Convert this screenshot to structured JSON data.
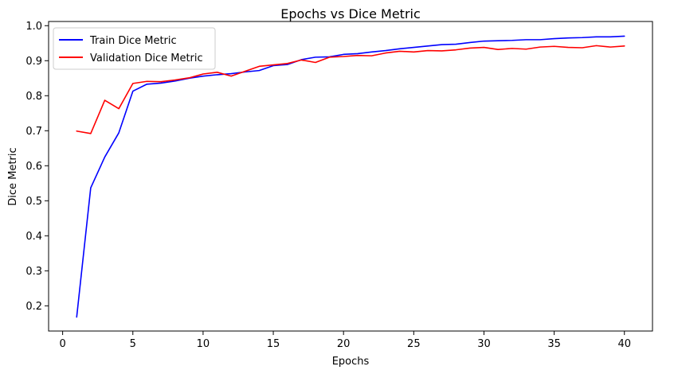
{
  "chart_data": {
    "type": "line",
    "title": "Epochs vs Dice Metric",
    "xlabel": "Epochs",
    "ylabel": "Dice Metric",
    "xlim": [
      -1,
      42
    ],
    "ylim": [
      0.128,
      1.012
    ],
    "xticks": [
      "0",
      "5",
      "10",
      "15",
      "20",
      "25",
      "30",
      "35",
      "40"
    ],
    "yticks": [
      "0.2",
      "0.3",
      "0.4",
      "0.5",
      "0.6",
      "0.7",
      "0.8",
      "0.9",
      "1.0"
    ],
    "grid": false,
    "legend_position": "upper-left",
    "x": [
      1,
      2,
      3,
      4,
      5,
      6,
      7,
      8,
      9,
      10,
      11,
      12,
      13,
      14,
      15,
      16,
      17,
      18,
      19,
      20,
      21,
      22,
      23,
      24,
      25,
      26,
      27,
      28,
      29,
      30,
      31,
      32,
      33,
      34,
      35,
      36,
      37,
      38,
      39,
      40
    ],
    "series": [
      {
        "name": "Train Dice Metric",
        "color": "#0000ff",
        "values": [
          0.168,
          0.537,
          0.625,
          0.694,
          0.813,
          0.833,
          0.836,
          0.842,
          0.85,
          0.856,
          0.86,
          0.863,
          0.868,
          0.872,
          0.886,
          0.889,
          0.903,
          0.91,
          0.911,
          0.918,
          0.92,
          0.925,
          0.929,
          0.934,
          0.938,
          0.942,
          0.946,
          0.947,
          0.952,
          0.956,
          0.957,
          0.958,
          0.96,
          0.96,
          0.963,
          0.965,
          0.966,
          0.968,
          0.968,
          0.97
        ]
      },
      {
        "name": "Validation Dice Metric",
        "color": "#ff0000",
        "values": [
          0.699,
          0.692,
          0.787,
          0.763,
          0.835,
          0.841,
          0.84,
          0.845,
          0.851,
          0.862,
          0.867,
          0.856,
          0.87,
          0.884,
          0.888,
          0.892,
          0.902,
          0.895,
          0.91,
          0.912,
          0.915,
          0.914,
          0.922,
          0.927,
          0.925,
          0.929,
          0.928,
          0.931,
          0.936,
          0.938,
          0.932,
          0.935,
          0.933,
          0.939,
          0.941,
          0.938,
          0.937,
          0.943,
          0.939,
          0.942
        ]
      }
    ]
  }
}
